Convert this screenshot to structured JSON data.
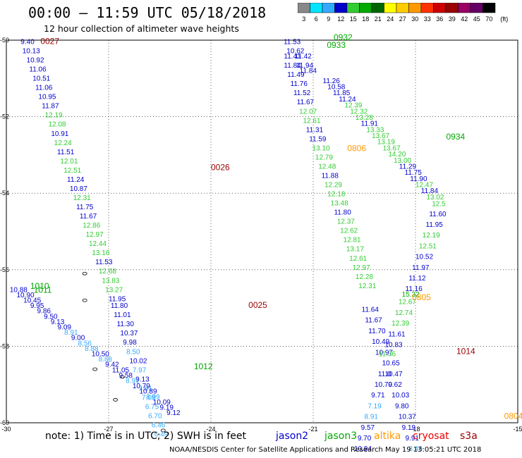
{
  "title": "00:00 – 11:59 UTC 05/18/2018",
  "subtitle": "12 hour collection of altimeter wave heights",
  "legend": {
    "levels": [
      "3",
      "6",
      "9",
      "12",
      "15",
      "18",
      "21",
      "24",
      "27",
      "30",
      "33",
      "36",
      "39",
      "42",
      "45",
      "70",
      "(ft)"
    ],
    "colors": [
      "#888888",
      "#00e5ff",
      "#33aaff",
      "#0000cc",
      "#33cc33",
      "#00aa00",
      "#006600",
      "#ffff00",
      "#ffcc00",
      "#ff9900",
      "#ff3300",
      "#cc0000",
      "#990000",
      "#990066",
      "#660066",
      "#000000"
    ]
  },
  "note": {
    "prefix": "note: 1) Time is in UTC; 2) SWH is in feet",
    "sats": [
      {
        "name": "jason2",
        "color": "#0000cc"
      },
      {
        "name": "jason3",
        "color": "#00aa00"
      },
      {
        "name": "altika",
        "color": "#ff9900"
      },
      {
        "name": "cryosat",
        "color": "#ee0000"
      },
      {
        "name": "s3a",
        "color": "#990000"
      }
    ]
  },
  "credit": "NOAA/NESDIS Center for Satellite Applications and Research    May 19 13:05:21 UTC 2018",
  "chart_data": {
    "type": "scatter",
    "x_ticks": [
      "-30",
      "-27",
      "-24",
      "-21",
      "-18",
      "-15"
    ],
    "y_ticks": [
      "-50",
      "-52",
      "-54",
      "-56",
      "-58",
      "-60"
    ],
    "xlim": [
      -30,
      -15
    ],
    "ylim": [
      -60,
      -50
    ],
    "time_labels": [
      {
        "text": "0027",
        "lon": -29.0,
        "lat": -50.1,
        "color": "#990000"
      },
      {
        "text": "0026",
        "lon": -24.0,
        "lat": -53.4,
        "color": "#990000"
      },
      {
        "text": "0025",
        "lon": -22.9,
        "lat": -57.0,
        "color": "#990000"
      },
      {
        "text": "0932",
        "lon": -20.4,
        "lat": -50.0,
        "color": "#00aa00"
      },
      {
        "text": "0933",
        "lon": -20.6,
        "lat": -50.2,
        "color": "#00aa00"
      },
      {
        "text": "0934",
        "lon": -17.1,
        "lat": -52.6,
        "color": "#00aa00"
      },
      {
        "text": "0806",
        "lon": -20.0,
        "lat": -52.9,
        "color": "#ff9900"
      },
      {
        "text": "0805",
        "lon": -18.1,
        "lat": -56.8,
        "color": "#ff9900"
      },
      {
        "text": "1014",
        "lon": -16.8,
        "lat": -58.2,
        "color": "#990000"
      },
      {
        "text": "1010",
        "lon": -29.3,
        "lat": -56.5,
        "color": "#00aa00"
      },
      {
        "text": "1011",
        "lon": -29.2,
        "lat": -56.6,
        "color": "#00aa00"
      },
      {
        "text": "1012",
        "lon": -24.5,
        "lat": -58.6,
        "color": "#00aa00"
      },
      {
        "text": "0804",
        "lon": -15.4,
        "lat": -59.9,
        "color": "#ff9900"
      }
    ],
    "points": [
      {
        "v": "9.40",
        "lon": -29.58,
        "lat": -50.1,
        "c": "#0000cc"
      },
      {
        "v": "10.13",
        "lon": -29.53,
        "lat": -50.34,
        "c": "#0000cc"
      },
      {
        "v": "10.92",
        "lon": -29.41,
        "lat": -50.58,
        "c": "#0000cc"
      },
      {
        "v": "11.06",
        "lon": -29.33,
        "lat": -50.82,
        "c": "#0000cc"
      },
      {
        "v": "10.51",
        "lon": -29.23,
        "lat": -51.06,
        "c": "#0000cc"
      },
      {
        "v": "11.06",
        "lon": -29.15,
        "lat": -51.3,
        "c": "#0000cc"
      },
      {
        "v": "10.95",
        "lon": -29.06,
        "lat": -51.54,
        "c": "#0000cc"
      },
      {
        "v": "11.87",
        "lon": -28.96,
        "lat": -51.78,
        "c": "#0000cc"
      },
      {
        "v": "12.19",
        "lon": -28.87,
        "lat": -52.02,
        "c": "#33cc33"
      },
      {
        "v": "12.08",
        "lon": -28.77,
        "lat": -52.26,
        "c": "#33cc33"
      },
      {
        "v": "10.91",
        "lon": -28.69,
        "lat": -52.5,
        "c": "#0000cc"
      },
      {
        "v": "12.24",
        "lon": -28.6,
        "lat": -52.74,
        "c": "#33cc33"
      },
      {
        "v": "11.51",
        "lon": -28.51,
        "lat": -52.98,
        "c": "#0000cc"
      },
      {
        "v": "12.01",
        "lon": -28.42,
        "lat": -53.22,
        "c": "#33cc33"
      },
      {
        "v": "12.51",
        "lon": -28.32,
        "lat": -53.46,
        "c": "#33cc33"
      },
      {
        "v": "11.24",
        "lon": -28.22,
        "lat": -53.7,
        "c": "#0000cc"
      },
      {
        "v": "10.87",
        "lon": -28.14,
        "lat": -53.94,
        "c": "#0000cc"
      },
      {
        "v": "12.31",
        "lon": -28.04,
        "lat": -54.18,
        "c": "#33cc33"
      },
      {
        "v": "11.75",
        "lon": -27.95,
        "lat": -54.42,
        "c": "#0000cc"
      },
      {
        "v": "11.67",
        "lon": -27.85,
        "lat": -54.66,
        "c": "#0000cc"
      },
      {
        "v": "12.86",
        "lon": -27.76,
        "lat": -54.9,
        "c": "#33cc33"
      },
      {
        "v": "12.97",
        "lon": -27.67,
        "lat": -55.14,
        "c": "#33cc33"
      },
      {
        "v": "12.44",
        "lon": -27.58,
        "lat": -55.38,
        "c": "#33cc33"
      },
      {
        "v": "13.16",
        "lon": -27.49,
        "lat": -55.62,
        "c": "#33cc33"
      },
      {
        "v": "11.53",
        "lon": -27.39,
        "lat": -55.86,
        "c": "#0000cc"
      },
      {
        "v": "12.68",
        "lon": -27.29,
        "lat": -56.1,
        "c": "#33cc33"
      },
      {
        "v": "13.83",
        "lon": -27.2,
        "lat": -56.34,
        "c": "#33cc33"
      },
      {
        "v": "13.27",
        "lon": -27.1,
        "lat": -56.58,
        "c": "#33cc33"
      },
      {
        "v": "11.95",
        "lon": -27.0,
        "lat": -56.82,
        "c": "#0000cc"
      },
      {
        "v": "11.80",
        "lon": -26.94,
        "lat": -57.0,
        "c": "#0000cc"
      },
      {
        "v": "11.01",
        "lon": -26.85,
        "lat": -57.24,
        "c": "#0000cc"
      },
      {
        "v": "11.30",
        "lon": -26.76,
        "lat": -57.48,
        "c": "#0000cc"
      },
      {
        "v": "10.37",
        "lon": -26.66,
        "lat": -57.72,
        "c": "#0000cc"
      },
      {
        "v": "9.98",
        "lon": -26.58,
        "lat": -57.96,
        "c": "#0000cc"
      },
      {
        "v": "8.50",
        "lon": -26.48,
        "lat": -58.2,
        "c": "#33aaff"
      },
      {
        "v": "10.02",
        "lon": -26.39,
        "lat": -58.44,
        "c": "#0000cc"
      },
      {
        "v": "7.97",
        "lon": -26.3,
        "lat": -58.68,
        "c": "#33aaff"
      },
      {
        "v": "9.13",
        "lon": -26.21,
        "lat": -58.92,
        "c": "#0000cc"
      },
      {
        "v": "7.81",
        "lon": -26.12,
        "lat": -59.16,
        "c": "#33aaff"
      },
      {
        "v": "7.09",
        "lon": -26.03,
        "lat": -59.4,
        "c": "#33aaff"
      },
      {
        "v": "6.75",
        "lon": -25.93,
        "lat": -59.64,
        "c": "#33aaff"
      },
      {
        "v": "6.70",
        "lon": -25.84,
        "lat": -59.88,
        "c": "#33aaff"
      },
      {
        "v": "6.46",
        "lon": -25.74,
        "lat": -60.12,
        "c": "#33aaff"
      },
      {
        "v": "6.49",
        "lon": -25.66,
        "lat": -60.36,
        "c": "#33aaff"
      },
      {
        "v": "11.53",
        "lon": -21.87,
        "lat": -50.1,
        "c": "#0000cc"
      },
      {
        "v": "10.62",
        "lon": -21.78,
        "lat": -50.34,
        "c": "#0000cc"
      },
      {
        "v": "11.43",
        "lon": -21.86,
        "lat": -50.48,
        "c": "#0000cc"
      },
      {
        "v": "11.42",
        "lon": -21.55,
        "lat": -50.48,
        "c": "#0000cc"
      },
      {
        "v": "11.84",
        "lon": -21.86,
        "lat": -50.72,
        "c": "#0000cc"
      },
      {
        "v": "11.94",
        "lon": -21.5,
        "lat": -50.72,
        "c": "#0000cc"
      },
      {
        "v": "11.49",
        "lon": -21.76,
        "lat": -50.96,
        "c": "#0000cc"
      },
      {
        "v": "11.84",
        "lon": -21.4,
        "lat": -50.86,
        "c": "#0000cc"
      },
      {
        "v": "11.76",
        "lon": -21.67,
        "lat": -51.2,
        "c": "#0000cc"
      },
      {
        "v": "11.52",
        "lon": -21.58,
        "lat": -51.44,
        "c": "#0000cc"
      },
      {
        "v": "11.67",
        "lon": -21.48,
        "lat": -51.68,
        "c": "#0000cc"
      },
      {
        "v": "12.07",
        "lon": -21.41,
        "lat": -51.92,
        "c": "#33cc33"
      },
      {
        "v": "12.61",
        "lon": -21.3,
        "lat": -52.16,
        "c": "#33cc33"
      },
      {
        "v": "11.31",
        "lon": -21.21,
        "lat": -52.4,
        "c": "#0000cc"
      },
      {
        "v": "11.59",
        "lon": -21.12,
        "lat": -52.64,
        "c": "#0000cc"
      },
      {
        "v": "13.10",
        "lon": -21.03,
        "lat": -52.88,
        "c": "#33cc33"
      },
      {
        "v": "12.79",
        "lon": -20.94,
        "lat": -53.12,
        "c": "#33cc33"
      },
      {
        "v": "12.48",
        "lon": -20.85,
        "lat": -53.36,
        "c": "#33cc33"
      },
      {
        "v": "11.88",
        "lon": -20.76,
        "lat": -53.6,
        "c": "#0000cc"
      },
      {
        "v": "12.29",
        "lon": -20.67,
        "lat": -53.84,
        "c": "#33cc33"
      },
      {
        "v": "12.18",
        "lon": -20.58,
        "lat": -54.08,
        "c": "#33cc33"
      },
      {
        "v": "13.48",
        "lon": -20.49,
        "lat": -54.32,
        "c": "#33cc33"
      },
      {
        "v": "11.80",
        "lon": -20.39,
        "lat": -54.56,
        "c": "#0000cc"
      },
      {
        "v": "12.37",
        "lon": -20.3,
        "lat": -54.8,
        "c": "#33cc33"
      },
      {
        "v": "12.62",
        "lon": -20.21,
        "lat": -55.04,
        "c": "#33cc33"
      },
      {
        "v": "12.81",
        "lon": -20.12,
        "lat": -55.28,
        "c": "#33cc33"
      },
      {
        "v": "13.17",
        "lon": -20.03,
        "lat": -55.52,
        "c": "#33cc33"
      },
      {
        "v": "12.61",
        "lon": -19.94,
        "lat": -55.76,
        "c": "#33cc33"
      },
      {
        "v": "12.97",
        "lon": -19.85,
        "lat": -56.0,
        "c": "#33cc33"
      },
      {
        "v": "12.28",
        "lon": -19.76,
        "lat": -56.24,
        "c": "#33cc33"
      },
      {
        "v": "12.31",
        "lon": -19.67,
        "lat": -56.48,
        "c": "#33cc33"
      },
      {
        "v": "11.26",
        "lon": -20.72,
        "lat": -51.12,
        "c": "#0000cc"
      },
      {
        "v": "10.58",
        "lon": -20.58,
        "lat": -51.28,
        "c": "#0000cc"
      },
      {
        "v": "11.85",
        "lon": -20.42,
        "lat": -51.44,
        "c": "#0000cc"
      },
      {
        "v": "11.24",
        "lon": -20.25,
        "lat": -51.6,
        "c": "#0000cc"
      },
      {
        "v": "12.39",
        "lon": -20.08,
        "lat": -51.76,
        "c": "#33cc33"
      },
      {
        "v": "12.32",
        "lon": -19.92,
        "lat": -51.92,
        "c": "#33cc33"
      },
      {
        "v": "13.28",
        "lon": -19.76,
        "lat": -52.08,
        "c": "#33cc33"
      },
      {
        "v": "11.91",
        "lon": -19.6,
        "lat": -52.24,
        "c": "#0000cc"
      },
      {
        "v": "13.33",
        "lon": -19.44,
        "lat": -52.4,
        "c": "#33cc33"
      },
      {
        "v": "13.67",
        "lon": -19.28,
        "lat": -52.56,
        "c": "#33cc33"
      },
      {
        "v": "13.19",
        "lon": -19.12,
        "lat": -52.72,
        "c": "#33cc33"
      },
      {
        "v": "13.67",
        "lon": -18.96,
        "lat": -52.88,
        "c": "#33cc33"
      },
      {
        "v": "14.20",
        "lon": -18.8,
        "lat": -53.04,
        "c": "#33cc33"
      },
      {
        "v": "13.00",
        "lon": -18.64,
        "lat": -53.2,
        "c": "#33cc33"
      },
      {
        "v": "11.29",
        "lon": -18.48,
        "lat": -53.36,
        "c": "#0000cc"
      },
      {
        "v": "11.75",
        "lon": -18.32,
        "lat": -53.52,
        "c": "#0000cc"
      },
      {
        "v": "11.90",
        "lon": -18.16,
        "lat": -53.68,
        "c": "#0000cc"
      },
      {
        "v": "12.47",
        "lon": -18.0,
        "lat": -53.84,
        "c": "#33cc33"
      },
      {
        "v": "11.84",
        "lon": -17.84,
        "lat": -54.0,
        "c": "#0000cc"
      },
      {
        "v": "13.02",
        "lon": -17.68,
        "lat": -54.16,
        "c": "#33cc33"
      },
      {
        "v": "12.5",
        "lon": -17.52,
        "lat": -54.34,
        "c": "#33cc33"
      },
      {
        "v": "11.60",
        "lon": -17.6,
        "lat": -54.6,
        "c": "#0000cc"
      },
      {
        "v": "11.95",
        "lon": -17.7,
        "lat": -54.88,
        "c": "#0000cc"
      },
      {
        "v": "12.19",
        "lon": -17.8,
        "lat": -55.16,
        "c": "#33cc33"
      },
      {
        "v": "12.51",
        "lon": -17.9,
        "lat": -55.44,
        "c": "#33cc33"
      },
      {
        "v": "10.52",
        "lon": -18.0,
        "lat": -55.72,
        "c": "#0000cc"
      },
      {
        "v": "11.97",
        "lon": -18.1,
        "lat": -56.0,
        "c": "#0000cc"
      },
      {
        "v": "11.12",
        "lon": -18.2,
        "lat": -56.28,
        "c": "#0000cc"
      },
      {
        "v": "11.16",
        "lon": -18.3,
        "lat": -56.56,
        "c": "#0000cc"
      },
      {
        "v": "15.32",
        "lon": -18.4,
        "lat": -56.7,
        "c": "#00aa00"
      },
      {
        "v": "12.67",
        "lon": -18.5,
        "lat": -56.9,
        "c": "#33cc33"
      },
      {
        "v": "12.74",
        "lon": -18.6,
        "lat": -57.18,
        "c": "#33cc33"
      },
      {
        "v": "12.39",
        "lon": -18.7,
        "lat": -57.46,
        "c": "#33cc33"
      },
      {
        "v": "11.61",
        "lon": -18.8,
        "lat": -57.74,
        "c": "#0000cc"
      },
      {
        "v": "10.83",
        "lon": -18.9,
        "lat": -58.02,
        "c": "#0000cc"
      },
      {
        "v": "11.64",
        "lon": -19.58,
        "lat": -57.1,
        "c": "#0000cc"
      },
      {
        "v": "11.67",
        "lon": -19.48,
        "lat": -57.38,
        "c": "#0000cc"
      },
      {
        "v": "11.70",
        "lon": -19.38,
        "lat": -57.66,
        "c": "#0000cc"
      },
      {
        "v": "10.49",
        "lon": -19.28,
        "lat": -57.94,
        "c": "#0000cc"
      },
      {
        "v": "10.97",
        "lon": -19.18,
        "lat": -58.22,
        "c": "#0000cc"
      },
      {
        "v": "11.36",
        "lon": -19.08,
        "lat": -58.26,
        "c": "#33cc33"
      },
      {
        "v": "10.65",
        "lon": -18.98,
        "lat": -58.5,
        "c": "#0000cc"
      },
      {
        "v": "11.0",
        "lon": -19.1,
        "lat": -58.78,
        "c": "#0000cc"
      },
      {
        "v": "10.47",
        "lon": -18.9,
        "lat": -58.78,
        "c": "#0000cc"
      },
      {
        "v": "10.70",
        "lon": -19.2,
        "lat": -59.06,
        "c": "#0000cc"
      },
      {
        "v": "9.62",
        "lon": -18.8,
        "lat": -59.06,
        "c": "#0000cc"
      },
      {
        "v": "9.71",
        "lon": -19.3,
        "lat": -59.34,
        "c": "#0000cc"
      },
      {
        "v": "10.03",
        "lon": -18.7,
        "lat": -59.34,
        "c": "#0000cc"
      },
      {
        "v": "7.19",
        "lon": -19.4,
        "lat": -59.62,
        "c": "#33aaff"
      },
      {
        "v": "9.80",
        "lon": -18.6,
        "lat": -59.62,
        "c": "#0000cc"
      },
      {
        "v": "8.91",
        "lon": -19.5,
        "lat": -59.9,
        "c": "#33aaff"
      },
      {
        "v": "10.37",
        "lon": -18.5,
        "lat": -59.9,
        "c": "#0000cc"
      },
      {
        "v": "9.57",
        "lon": -19.6,
        "lat": -60.18,
        "c": "#0000cc"
      },
      {
        "v": "9.19",
        "lon": -18.4,
        "lat": -60.18,
        "c": "#0000cc"
      },
      {
        "v": "9.70",
        "lon": -19.7,
        "lat": -60.46,
        "c": "#0000cc"
      },
      {
        "v": "9.91",
        "lon": -18.3,
        "lat": -60.46,
        "c": "#0000cc"
      },
      {
        "v": "10.94",
        "lon": -19.8,
        "lat": -60.74,
        "c": "#0000cc"
      },
      {
        "v": "8.46",
        "lon": -18.2,
        "lat": -60.74,
        "c": "#33aaff"
      },
      {
        "v": "10.88",
        "lon": -29.9,
        "lat": -56.58,
        "c": "#0000cc"
      },
      {
        "v": "10.90",
        "lon": -29.7,
        "lat": -56.72,
        "c": "#0000cc"
      },
      {
        "v": "10.45",
        "lon": -29.5,
        "lat": -56.86,
        "c": "#0000cc"
      },
      {
        "v": "9.95",
        "lon": -29.3,
        "lat": -57.0,
        "c": "#0000cc"
      },
      {
        "v": "9.86",
        "lon": -29.1,
        "lat": -57.14,
        "c": "#0000cc"
      },
      {
        "v": "9.50",
        "lon": -28.9,
        "lat": -57.28,
        "c": "#0000cc"
      },
      {
        "v": "9.13",
        "lon": -28.7,
        "lat": -57.42,
        "c": "#0000cc"
      },
      {
        "v": "9.09",
        "lon": -28.5,
        "lat": -57.56,
        "c": "#0000cc"
      },
      {
        "v": "8.91",
        "lon": -28.3,
        "lat": -57.7,
        "c": "#33aaff"
      },
      {
        "v": "9.00",
        "lon": -28.1,
        "lat": -57.84,
        "c": "#0000cc"
      },
      {
        "v": "8.56",
        "lon": -27.9,
        "lat": -57.98,
        "c": "#33aaff"
      },
      {
        "v": "8.88",
        "lon": -27.7,
        "lat": -58.12,
        "c": "#33aaff"
      },
      {
        "v": "10.50",
        "lon": -27.5,
        "lat": -58.26,
        "c": "#0000cc"
      },
      {
        "v": "8.88",
        "lon": -27.3,
        "lat": -58.4,
        "c": "#33aaff"
      },
      {
        "v": "9.42",
        "lon": -27.1,
        "lat": -58.54,
        "c": "#0000cc"
      },
      {
        "v": "11.05",
        "lon": -26.9,
        "lat": -58.68,
        "c": "#0000cc"
      },
      {
        "v": "9.58",
        "lon": -26.7,
        "lat": -58.82,
        "c": "#0000cc"
      },
      {
        "v": "8.91",
        "lon": -26.5,
        "lat": -58.96,
        "c": "#33aaff"
      },
      {
        "v": "10.79",
        "lon": -26.3,
        "lat": -59.1,
        "c": "#0000cc"
      },
      {
        "v": "10.89",
        "lon": -26.1,
        "lat": -59.24,
        "c": "#0000cc"
      },
      {
        "v": "8.99",
        "lon": -25.9,
        "lat": -59.38,
        "c": "#33aaff"
      },
      {
        "v": "10.09",
        "lon": -25.7,
        "lat": -59.52,
        "c": "#0000cc"
      },
      {
        "v": "9.19",
        "lon": -25.5,
        "lat": -59.66,
        "c": "#0000cc"
      },
      {
        "v": "9.12",
        "lon": -25.3,
        "lat": -59.8,
        "c": "#0000cc"
      }
    ]
  }
}
